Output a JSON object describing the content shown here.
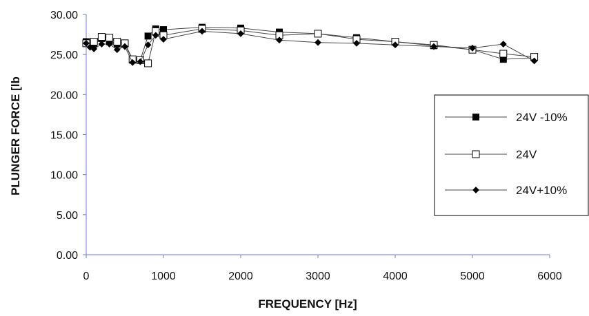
{
  "chart_data": {
    "type": "line",
    "title": "",
    "xlabel": "FREQUENCY [Hz]",
    "ylabel": "PLUNGER FORCE [lb",
    "xlim": [
      0,
      6000
    ],
    "ylim": [
      0,
      30
    ],
    "xticks": [
      "0",
      "1000",
      "2000",
      "3000",
      "4000",
      "5000",
      "6000"
    ],
    "yticks": [
      "0.00",
      "5.00",
      "10.00",
      "15.00",
      "20.00",
      "25.00",
      "30.00"
    ],
    "grid": false,
    "legend_position": "right",
    "series": [
      {
        "name": "24V -10%",
        "marker": "square-filled",
        "color": "#000000",
        "x": [
          0,
          100,
          200,
          300,
          400,
          500,
          600,
          700,
          800,
          900,
          1000,
          1500,
          2000,
          2500,
          3000,
          3500,
          4000,
          4500,
          5000,
          5400,
          5800
        ],
        "y": [
          26.6,
          26.3,
          27.0,
          26.6,
          26.3,
          26.3,
          24.3,
          24.3,
          27.3,
          28.2,
          28.1,
          28.4,
          28.3,
          27.8,
          27.6,
          27.1,
          26.6,
          26.1,
          25.6,
          24.4,
          24.6
        ]
      },
      {
        "name": "24V",
        "marker": "square-open",
        "color": "#000000",
        "x": [
          0,
          100,
          200,
          300,
          400,
          500,
          600,
          700,
          800,
          900,
          1000,
          1500,
          2000,
          2500,
          3000,
          3500,
          4000,
          4500,
          5000,
          5400,
          5800
        ],
        "y": [
          26.4,
          26.6,
          27.2,
          27.1,
          26.6,
          26.4,
          24.4,
          24.3,
          23.9,
          27.9,
          27.4,
          28.2,
          28.0,
          27.4,
          27.6,
          26.9,
          26.6,
          26.2,
          25.6,
          25.1,
          24.7
        ]
      },
      {
        "name": "24V+10%",
        "marker": "diamond-filled",
        "color": "#000000",
        "x": [
          0,
          50,
          100,
          200,
          300,
          400,
          500,
          600,
          700,
          800,
          900,
          1000,
          1500,
          2000,
          2500,
          3000,
          3500,
          4000,
          4500,
          5000,
          5400,
          5800
        ],
        "y": [
          26.4,
          25.9,
          25.7,
          26.3,
          26.3,
          25.6,
          26.0,
          24.0,
          24.1,
          26.2,
          27.4,
          26.9,
          27.9,
          27.6,
          26.8,
          26.5,
          26.4,
          26.2,
          26.0,
          25.8,
          26.3,
          24.2
        ]
      }
    ]
  }
}
